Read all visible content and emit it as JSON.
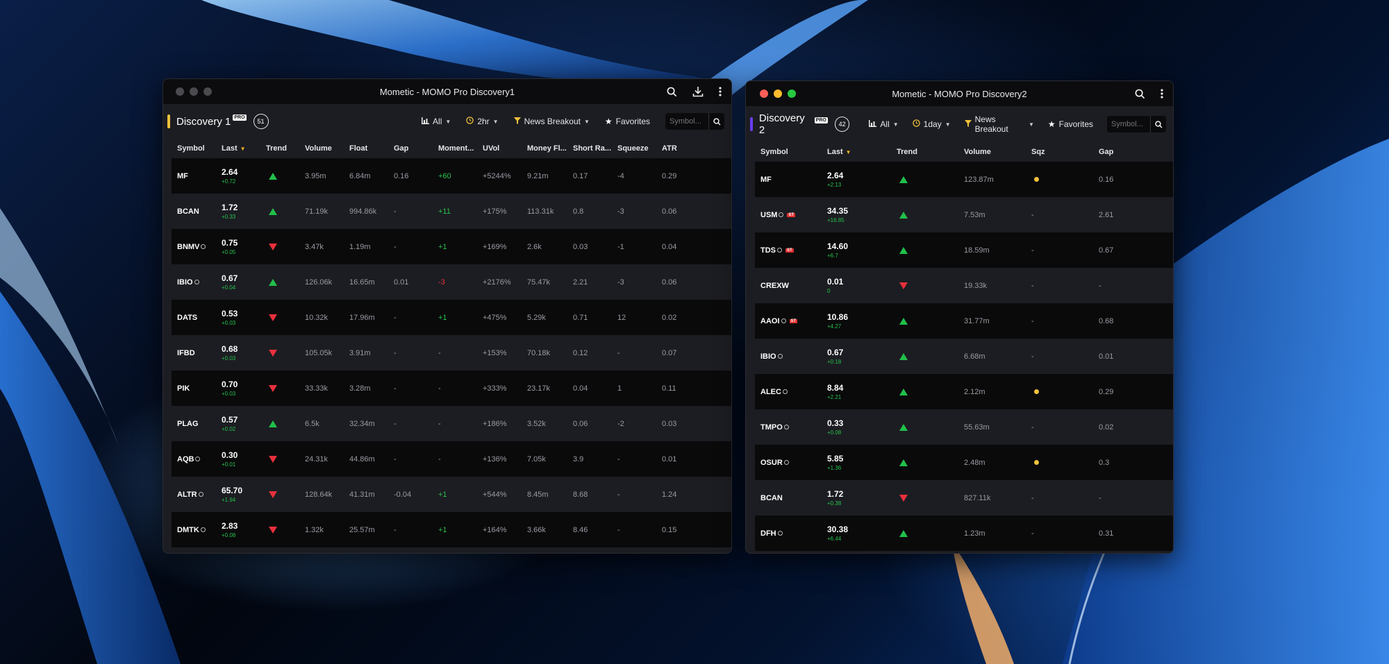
{
  "colors": {
    "accent_win1": "#f0c23b",
    "accent_win2": "#6b3cf0",
    "up": "#21c04a",
    "down": "#e8303c",
    "squeeze_dot": "#f0c23b"
  },
  "window1": {
    "title": "Mometic - MOMO Pro Discovery1",
    "traffic_lights": "inactive",
    "titlebar_icons": [
      "search-icon",
      "download-icon",
      "more-vertical-icon"
    ],
    "name": "Discovery 1",
    "badge": "PRO",
    "count": "51",
    "filters": {
      "all": "All",
      "timeframe": "2hr",
      "news": "News Breakout",
      "favorites": "Favorites"
    },
    "search_placeholder": "Symbol...",
    "headers": [
      "Symbol",
      "Last",
      "Trend",
      "Volume",
      "Float",
      "Gap",
      "Moment...",
      "UVol",
      "Money Fl...",
      "Short Ra...",
      "Squeeze",
      "ATR"
    ],
    "rows": [
      {
        "symbol": "MF",
        "ring": false,
        "last": "2.64",
        "chg": "+0.72",
        "trend": "up",
        "volume": "3.95m",
        "float": "6.84m",
        "gap": "0.16",
        "momentum": "+60",
        "momentum_sign": "pos",
        "uvol": "+5244%",
        "money_flow": "9.21m",
        "short_ratio": "0.17",
        "squeeze": "-4",
        "atr": "0.29"
      },
      {
        "symbol": "BCAN",
        "ring": false,
        "last": "1.72",
        "chg": "+0.33",
        "trend": "up",
        "volume": "71.19k",
        "float": "994.86k",
        "gap": "-",
        "momentum": "+11",
        "momentum_sign": "pos",
        "uvol": "+175%",
        "money_flow": "113.31k",
        "short_ratio": "0.8",
        "squeeze": "-3",
        "atr": "0.06"
      },
      {
        "symbol": "BNMV",
        "ring": true,
        "last": "0.75",
        "chg": "+0.05",
        "trend": "down",
        "volume": "3.47k",
        "float": "1.19m",
        "gap": "-",
        "momentum": "+1",
        "momentum_sign": "pos",
        "uvol": "+169%",
        "money_flow": "2.6k",
        "short_ratio": "0.03",
        "squeeze": "-1",
        "atr": "0.04"
      },
      {
        "symbol": "IBIO",
        "ring": true,
        "last": "0.67",
        "chg": "+0.04",
        "trend": "up",
        "volume": "126.06k",
        "float": "16.65m",
        "gap": "0.01",
        "momentum": "-3",
        "momentum_sign": "neg",
        "uvol": "+2176%",
        "money_flow": "75.47k",
        "short_ratio": "2.21",
        "squeeze": "-3",
        "atr": "0.06"
      },
      {
        "symbol": "DATS",
        "ring": false,
        "last": "0.53",
        "chg": "+0.03",
        "trend": "down",
        "volume": "10.32k",
        "float": "17.96m",
        "gap": "-",
        "momentum": "+1",
        "momentum_sign": "pos",
        "uvol": "+475%",
        "money_flow": "5.29k",
        "short_ratio": "0.71",
        "squeeze": "12",
        "atr": "0.02"
      },
      {
        "symbol": "IFBD",
        "ring": false,
        "last": "0.68",
        "chg": "+0.03",
        "trend": "down",
        "volume": "105.05k",
        "float": "3.91m",
        "gap": "-",
        "momentum": "-",
        "momentum_sign": "none",
        "uvol": "+153%",
        "money_flow": "70.18k",
        "short_ratio": "0.12",
        "squeeze": "-",
        "atr": "0.07"
      },
      {
        "symbol": "PIK",
        "ring": false,
        "last": "0.70",
        "chg": "+0.03",
        "trend": "down",
        "volume": "33.33k",
        "float": "3.28m",
        "gap": "-",
        "momentum": "-",
        "momentum_sign": "none",
        "uvol": "+333%",
        "money_flow": "23.17k",
        "short_ratio": "0.04",
        "squeeze": "1",
        "atr": "0.11"
      },
      {
        "symbol": "PLAG",
        "ring": false,
        "last": "0.57",
        "chg": "+0.02",
        "trend": "up",
        "volume": "6.5k",
        "float": "32.34m",
        "gap": "-",
        "momentum": "-",
        "momentum_sign": "none",
        "uvol": "+186%",
        "money_flow": "3.52k",
        "short_ratio": "0.06",
        "squeeze": "-2",
        "atr": "0.03"
      },
      {
        "symbol": "AQB",
        "ring": true,
        "last": "0.30",
        "chg": "+0.01",
        "trend": "down",
        "volume": "24.31k",
        "float": "44.86m",
        "gap": "-",
        "momentum": "-",
        "momentum_sign": "none",
        "uvol": "+136%",
        "money_flow": "7.05k",
        "short_ratio": "3.9",
        "squeeze": "-",
        "atr": "0.01"
      },
      {
        "symbol": "ALTR",
        "ring": true,
        "last": "65.70",
        "chg": "+1.94",
        "trend": "down",
        "volume": "128.64k",
        "float": "41.31m",
        "gap": "-0.04",
        "momentum": "+1",
        "momentum_sign": "pos",
        "uvol": "+544%",
        "money_flow": "8.45m",
        "short_ratio": "8.68",
        "squeeze": "-",
        "atr": "1.24"
      },
      {
        "symbol": "DMTK",
        "ring": true,
        "last": "2.83",
        "chg": "+0.08",
        "trend": "down",
        "volume": "1.32k",
        "float": "25.57m",
        "gap": "-",
        "momentum": "+1",
        "momentum_sign": "pos",
        "uvol": "+164%",
        "money_flow": "3.66k",
        "short_ratio": "8.46",
        "squeeze": "-",
        "atr": "0.15"
      }
    ]
  },
  "window2": {
    "title": "Mometic - MOMO Pro Discovery2",
    "traffic_lights": "active",
    "titlebar_icons": [
      "search-icon",
      "more-vertical-icon"
    ],
    "name": "Discovery 2",
    "badge": "PRO",
    "count": "42",
    "filters": {
      "all": "All",
      "timeframe": "1day",
      "news": "News Breakout",
      "favorites": "Favorites"
    },
    "search_placeholder": "Symbol...",
    "headers": [
      "Symbol",
      "Last",
      "Trend",
      "Volume",
      "Sqz",
      "Gap"
    ],
    "rows": [
      {
        "symbol": "MF",
        "ring": false,
        "st": false,
        "last": "2.64",
        "chg": "+2.13",
        "trend": "up",
        "volume": "123.87m",
        "sqz": "dot",
        "gap": "0.16"
      },
      {
        "symbol": "USM",
        "ring": true,
        "st": true,
        "st_label": "ST",
        "last": "34.35",
        "chg": "+16.85",
        "trend": "up",
        "volume": "7.53m",
        "sqz": "-",
        "gap": "2.61"
      },
      {
        "symbol": "TDS",
        "ring": true,
        "st": true,
        "st_label": "ST",
        "last": "14.60",
        "chg": "+6.7",
        "trend": "up",
        "volume": "18.59m",
        "sqz": "-",
        "gap": "0.67"
      },
      {
        "symbol": "CREXW",
        "ring": false,
        "st": false,
        "last": "0.01",
        "chg": "0",
        "trend": "down",
        "volume": "19.33k",
        "sqz": "-",
        "gap": "-"
      },
      {
        "symbol": "AAOI",
        "ring": true,
        "st": true,
        "st_label": "ST",
        "last": "10.86",
        "chg": "+4.27",
        "trend": "up",
        "volume": "31.77m",
        "sqz": "-",
        "gap": "0.68"
      },
      {
        "symbol": "IBIO",
        "ring": true,
        "st": false,
        "last": "0.67",
        "chg": "+0.18",
        "trend": "up",
        "volume": "6.68m",
        "sqz": "-",
        "gap": "0.01"
      },
      {
        "symbol": "ALEC",
        "ring": true,
        "st": false,
        "last": "8.84",
        "chg": "+2.21",
        "trend": "up",
        "volume": "2.12m",
        "sqz": "dot",
        "gap": "0.29"
      },
      {
        "symbol": "TMPO",
        "ring": true,
        "st": false,
        "last": "0.33",
        "chg": "+0.08",
        "trend": "up",
        "volume": "55.63m",
        "sqz": "-",
        "gap": "0.02"
      },
      {
        "symbol": "OSUR",
        "ring": true,
        "st": false,
        "last": "5.85",
        "chg": "+1.36",
        "trend": "up",
        "volume": "2.48m",
        "sqz": "dot",
        "gap": "0.3"
      },
      {
        "symbol": "BCAN",
        "ring": false,
        "st": false,
        "last": "1.72",
        "chg": "+0.38",
        "trend": "down",
        "volume": "827.11k",
        "sqz": "-",
        "gap": "-"
      },
      {
        "symbol": "DFH",
        "ring": true,
        "st": false,
        "last": "30.38",
        "chg": "+6.44",
        "trend": "up",
        "volume": "1.23m",
        "sqz": "-",
        "gap": "0.31"
      }
    ]
  }
}
